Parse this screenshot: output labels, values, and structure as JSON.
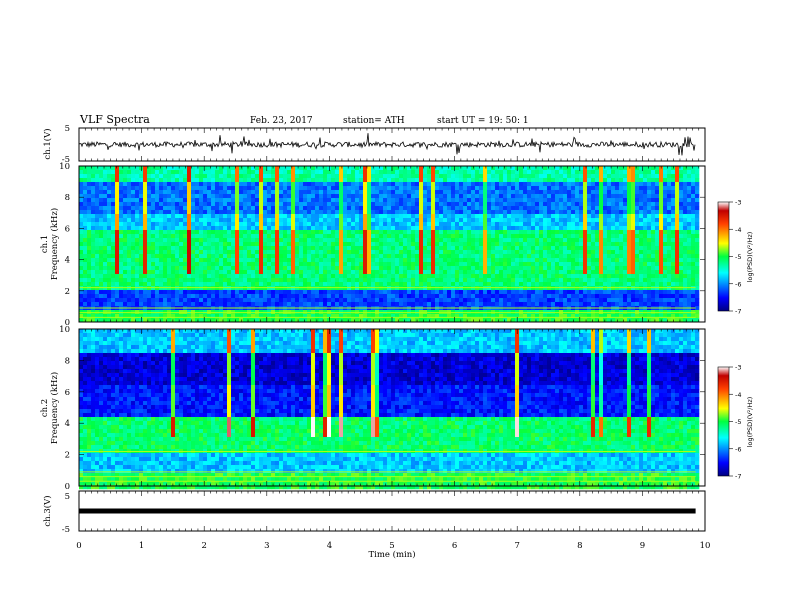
{
  "header": {
    "title": "VLF Spectra",
    "date": "Feb. 23, 2017",
    "station": "station= ATH",
    "start_time": "start  UT =   19: 50: 1"
  },
  "chart_data": [
    {
      "type": "line",
      "panel": "ch1-waveform",
      "ylabel": "ch.1(V)",
      "ylim": [
        -5,
        5
      ],
      "yticks": [
        "5",
        "-5"
      ],
      "xlim": [
        0,
        10
      ],
      "color": "#000000"
    },
    {
      "type": "heatmap",
      "panel": "ch1-spectrogram",
      "ylabel": "ch.1\nFrequency (kHz)",
      "ylabel_line1": "ch.1",
      "ylabel_line2": "Frequency (kHz)",
      "ylim": [
        0,
        10
      ],
      "yticks": [
        "0",
        "2",
        "4",
        "6",
        "8",
        "10"
      ],
      "xlim": [
        0,
        9.85
      ],
      "colorbar": {
        "label": "log(PSD)(V²/Hz)",
        "range": [
          -7,
          -3
        ],
        "ticks": [
          "-3",
          "-4",
          "-5",
          "-6",
          "-7"
        ]
      }
    },
    {
      "type": "heatmap",
      "panel": "ch2-spectrogram",
      "ylabel_line1": "ch.2",
      "ylabel_line2": "Frequency (kHz)",
      "ylim": [
        0,
        10
      ],
      "yticks": [
        "0",
        "2",
        "4",
        "6",
        "8",
        "10"
      ],
      "xlim": [
        0,
        9.85
      ],
      "colorbar": {
        "label": "log(PSD)(V²/Hz)",
        "range": [
          -7,
          -3
        ],
        "ticks": [
          "-3",
          "-4",
          "-5",
          "-6",
          "-7"
        ]
      }
    },
    {
      "type": "line",
      "panel": "ch3-waveform",
      "ylabel": "ch.3(V)",
      "ylim": [
        -5,
        5
      ],
      "yticks": [
        "5",
        "-5"
      ],
      "xlim": [
        0,
        10
      ],
      "level": 0,
      "color": "#000000"
    }
  ],
  "xaxis": {
    "label": "Time  (min)",
    "range": [
      0,
      10
    ],
    "ticks": [
      "0",
      "1",
      "2",
      "3",
      "4",
      "5",
      "6",
      "7",
      "8",
      "9",
      "10"
    ]
  }
}
